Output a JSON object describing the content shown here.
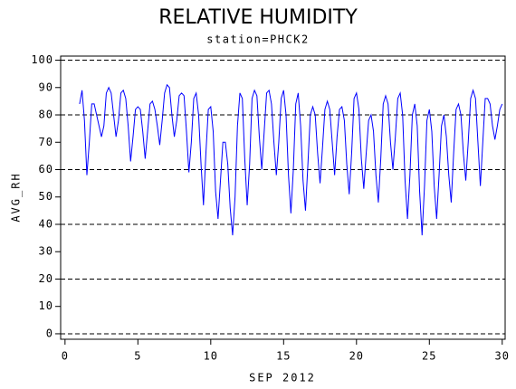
{
  "chart_data": {
    "type": "line",
    "title": "RELATIVE HUMIDITY",
    "subtitle": "station=PHCK2",
    "x_label": "SEP 2012",
    "y_label": "AVG_RH",
    "xlim": [
      -0.3,
      30.2
    ],
    "xticks": [
      0,
      5,
      10,
      15,
      20,
      25,
      30
    ],
    "ylim": [
      -2,
      101.5
    ],
    "yticks": [
      0,
      10,
      20,
      30,
      40,
      50,
      60,
      70,
      80,
      90,
      100
    ],
    "grid_values": [
      0,
      20,
      40,
      60,
      80,
      100
    ],
    "series": [
      {
        "name": "AVG_RH",
        "color": "#0000ff",
        "x": [
          1,
          1.167,
          1.333,
          1.5,
          1.667,
          1.833,
          2,
          2.167,
          2.333,
          2.5,
          2.667,
          2.833,
          3,
          3.167,
          3.333,
          3.5,
          3.667,
          3.833,
          4,
          4.167,
          4.333,
          4.5,
          4.667,
          4.833,
          5,
          5.167,
          5.333,
          5.5,
          5.667,
          5.833,
          6,
          6.167,
          6.333,
          6.5,
          6.667,
          6.833,
          7,
          7.167,
          7.333,
          7.5,
          7.667,
          7.833,
          8,
          8.167,
          8.333,
          8.5,
          8.667,
          8.833,
          9,
          9.167,
          9.333,
          9.5,
          9.667,
          9.833,
          10,
          10.167,
          10.333,
          10.5,
          10.667,
          10.833,
          11,
          11.167,
          11.333,
          11.5,
          11.667,
          11.833,
          12,
          12.167,
          12.333,
          12.5,
          12.667,
          12.833,
          13,
          13.167,
          13.333,
          13.5,
          13.667,
          13.833,
          14,
          14.167,
          14.333,
          14.5,
          14.667,
          14.833,
          15,
          15.167,
          15.333,
          15.5,
          15.667,
          15.833,
          16,
          16.167,
          16.333,
          16.5,
          16.667,
          16.833,
          17,
          17.167,
          17.333,
          17.5,
          17.667,
          17.833,
          18,
          18.167,
          18.333,
          18.5,
          18.667,
          18.833,
          19,
          19.167,
          19.333,
          19.5,
          19.667,
          19.833,
          20,
          20.167,
          20.333,
          20.5,
          20.667,
          20.833,
          21,
          21.167,
          21.333,
          21.5,
          21.667,
          21.833,
          22,
          22.167,
          22.333,
          22.5,
          22.667,
          22.833,
          23,
          23.167,
          23.333,
          23.5,
          23.667,
          23.833,
          24,
          24.167,
          24.333,
          24.5,
          24.667,
          24.833,
          25,
          25.167,
          25.333,
          25.5,
          25.667,
          25.833,
          26,
          26.167,
          26.333,
          26.5,
          26.667,
          26.833,
          27,
          27.167,
          27.333,
          27.5,
          27.667,
          27.833,
          28,
          28.167,
          28.333,
          28.5,
          28.667,
          28.833,
          29,
          29.167,
          29.333,
          29.5,
          29.667,
          29.833,
          30
        ],
        "values": [
          84,
          89,
          78,
          58,
          70,
          84,
          84,
          80,
          76,
          72,
          76,
          88,
          90,
          88,
          80,
          72,
          78,
          88,
          89,
          86,
          76,
          63,
          72,
          82,
          83,
          82,
          74,
          64,
          74,
          84,
          85,
          82,
          76,
          69,
          78,
          88,
          91,
          90,
          80,
          72,
          78,
          87,
          88,
          87,
          74,
          59,
          70,
          86,
          88,
          80,
          62,
          47,
          66,
          82,
          83,
          74,
          52,
          42,
          56,
          70,
          70,
          62,
          46,
          36,
          50,
          76,
          88,
          86,
          64,
          47,
          62,
          86,
          89,
          87,
          72,
          60,
          74,
          88,
          89,
          84,
          70,
          58,
          70,
          86,
          89,
          80,
          58,
          44,
          60,
          84,
          88,
          76,
          56,
          45,
          62,
          80,
          83,
          80,
          66,
          55,
          68,
          82,
          85,
          82,
          70,
          58,
          72,
          82,
          83,
          78,
          62,
          51,
          66,
          86,
          88,
          82,
          64,
          53,
          66,
          78,
          80,
          74,
          58,
          48,
          64,
          84,
          87,
          84,
          70,
          60,
          72,
          86,
          88,
          80,
          56,
          42,
          58,
          80,
          84,
          76,
          52,
          36,
          54,
          78,
          82,
          74,
          54,
          42,
          58,
          76,
          80,
          72,
          58,
          48,
          66,
          82,
          84,
          80,
          66,
          56,
          70,
          86,
          89,
          86,
          70,
          54,
          70,
          86,
          86,
          84,
          76,
          71,
          76,
          82,
          84
        ]
      }
    ]
  }
}
